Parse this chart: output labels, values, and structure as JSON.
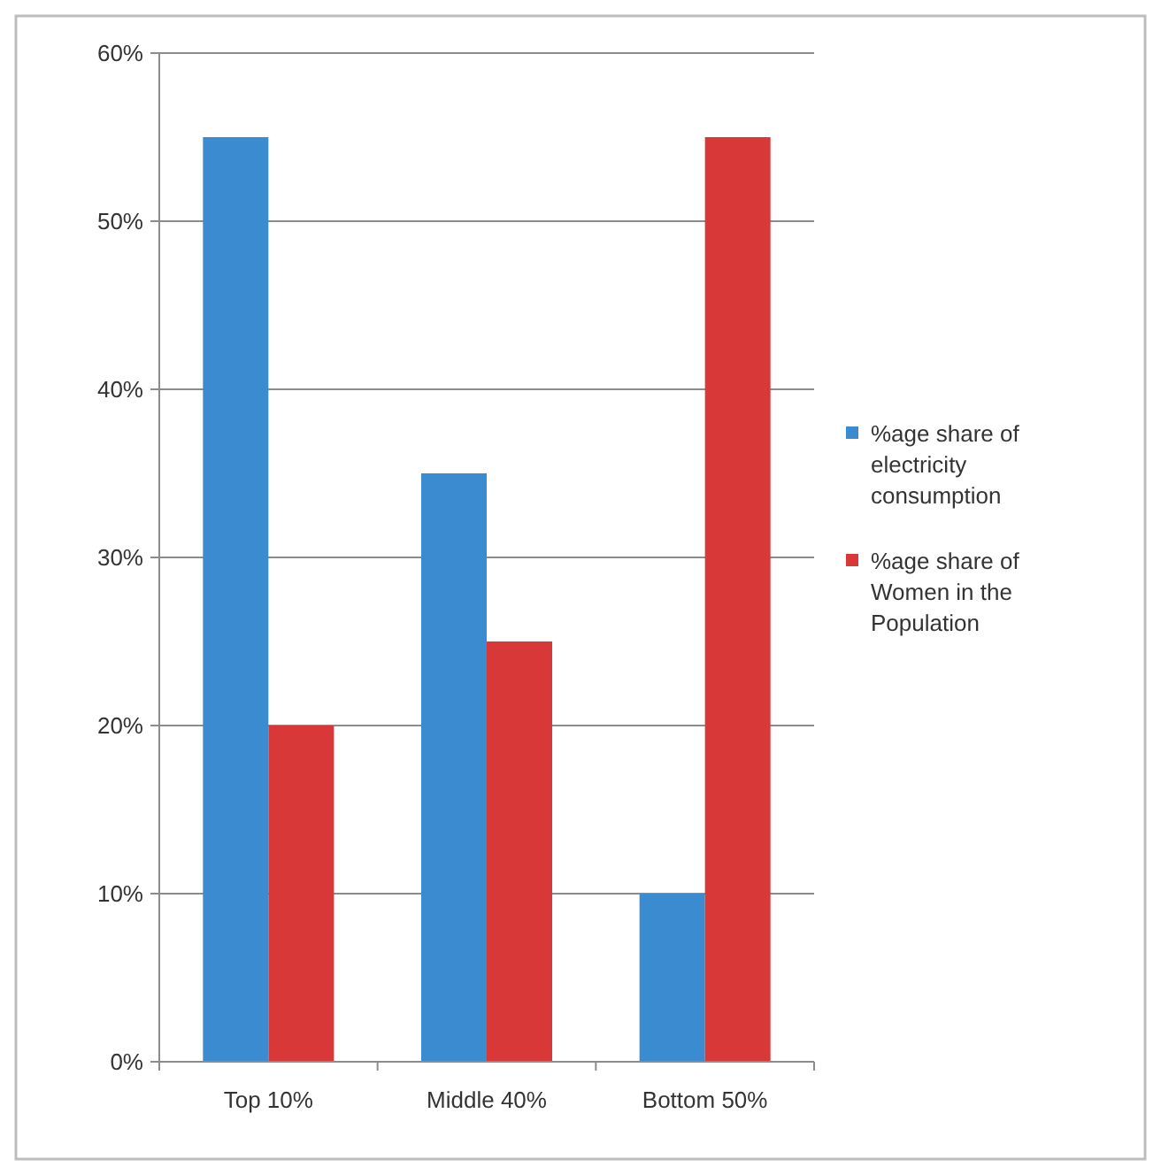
{
  "chart_data": {
    "type": "bar",
    "categories": [
      "Top 10%",
      "Middle 40%",
      "Bottom 50%"
    ],
    "series": [
      {
        "name": "%age share of electricity consumption",
        "color": "#3b8bd0",
        "values": [
          55,
          35,
          10
        ]
      },
      {
        "name": "%age share of Women in the Population",
        "color": "#d93838",
        "values": [
          20,
          25,
          55
        ]
      }
    ],
    "ylim": [
      0,
      60
    ],
    "yticks": [
      {
        "value": 0,
        "label": "0%"
      },
      {
        "value": 10,
        "label": "10%"
      },
      {
        "value": 20,
        "label": "20%"
      },
      {
        "value": 30,
        "label": "30%"
      },
      {
        "value": 40,
        "label": "40%"
      },
      {
        "value": 50,
        "label": "50%"
      },
      {
        "value": 60,
        "label": "60%"
      }
    ],
    "grid": "y",
    "legend": "right"
  }
}
